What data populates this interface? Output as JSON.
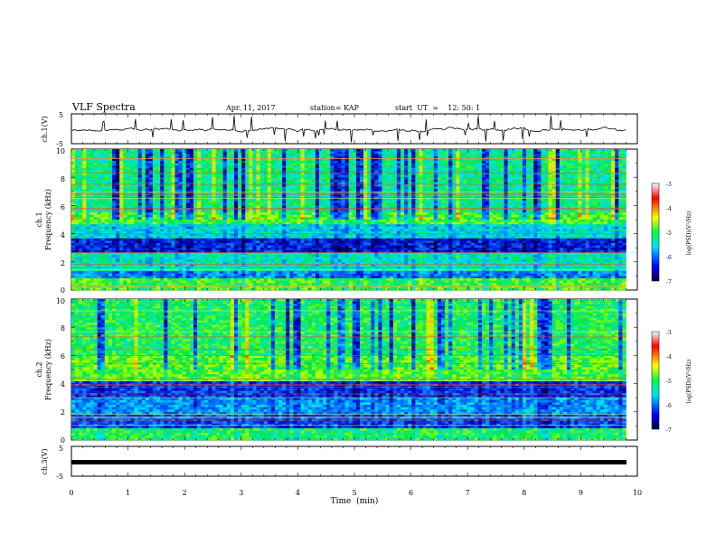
{
  "header": {
    "title": "VLF Spectra",
    "date": "Apr. 11, 2017",
    "station": "station= KAP",
    "start": "start  UT  =    12: 50: 1"
  },
  "chart_data": [
    {
      "type": "line",
      "panel": "ch1-waveform",
      "ylabel": "ch.1(V)",
      "ylim": [
        -5,
        5
      ],
      "yticks": [
        "5",
        "-5"
      ],
      "xlim": [
        0,
        10
      ],
      "color": "#000000"
    },
    {
      "type": "heatmap",
      "panel": "ch1-spectrogram",
      "ylabel_channel": "ch.1",
      "ylabel": "Frequency  (kHz)",
      "ylim": [
        0,
        10
      ],
      "yticks": [
        "0",
        "2",
        "4",
        "6",
        "8",
        "10"
      ],
      "xlim": [
        0,
        9.8
      ],
      "colorbar": {
        "label": "log(PSD)(V²/Hz)",
        "range": [
          -7,
          -3
        ],
        "ticks": [
          "-3",
          "-4",
          "-5",
          "-6",
          "-7"
        ]
      }
    },
    {
      "type": "heatmap",
      "panel": "ch2-spectrogram",
      "ylabel_channel": "ch.2",
      "ylabel": "Frequency  (kHz)",
      "ylim": [
        0,
        10
      ],
      "yticks": [
        "0",
        "2",
        "4",
        "6",
        "8",
        "10"
      ],
      "xlim": [
        0,
        9.8
      ],
      "colorbar": {
        "label": "log(PSD)(V²/Hz)",
        "range": [
          -7,
          -3
        ],
        "ticks": [
          "-3",
          "-4",
          "-5",
          "-6",
          "-7"
        ]
      }
    },
    {
      "type": "line",
      "panel": "ch3-waveform",
      "ylabel": "ch.3(V)",
      "ylim": [
        -5,
        5
      ],
      "yticks": [
        "5",
        "-5"
      ],
      "values": [
        -1.5
      ],
      "xlim": [
        0,
        10
      ],
      "color": "#000000"
    }
  ],
  "xaxis": {
    "label": "Time  (min)",
    "ticks": [
      "0",
      "1",
      "2",
      "3",
      "4",
      "5",
      "6",
      "7",
      "8",
      "9",
      "10"
    ]
  }
}
